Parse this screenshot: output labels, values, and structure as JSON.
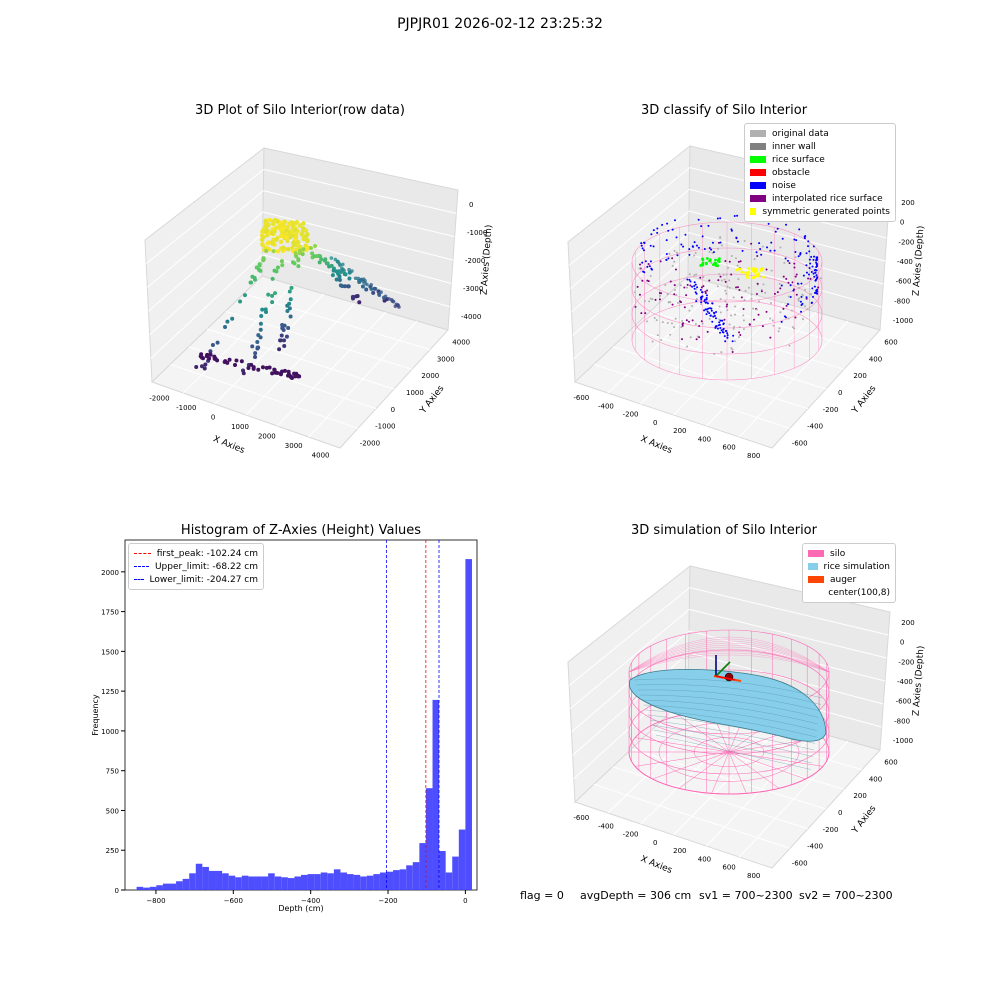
{
  "title": "PJPJR01 2026-02-12 23:25:32",
  "footer": {
    "flag": "flag = 0",
    "avg_depth": "avgDepth = 306 cm",
    "sv1": "sv1 = 700~2300",
    "sv2": "sv2 = 700~2300"
  },
  "colors": {
    "original_data": "#b0b0b0",
    "inner_wall": "#808080",
    "rice_surface": "#00ff00",
    "obstacle": "#ff0000",
    "noise": "#0000ff",
    "interpolated": "#800080",
    "symmetric": "#ffff00",
    "silo": "#ff69b4",
    "rice_simulation": "#87ceeb",
    "auger": "#ff4500",
    "hist_bar": "#4444ff"
  },
  "chart_data": [
    {
      "type": "scatter",
      "title": "3D Plot of Silo Interior(row data)",
      "xlabel": "X Axies",
      "ylabel": "Y Axies",
      "zlabel": "Z Axies (Depth)",
      "x_ticks": [
        "-2000",
        "-1000",
        "0",
        "1000",
        "2000",
        "3000",
        "4000"
      ],
      "y_ticks": [
        "-2000",
        "-1000",
        "0",
        "1000",
        "2000",
        "3000",
        "4000"
      ],
      "z_ticks": [
        "0",
        "-1000",
        "-2000",
        "-3000",
        "-4000"
      ]
    },
    {
      "type": "scatter",
      "title": "3D classify of Silo Interior",
      "xlabel": "X Axies",
      "ylabel": "Y Axies",
      "zlabel": "Z Axies (Depth)",
      "x_ticks": [
        "-600",
        "-400",
        "-200",
        "0",
        "200",
        "400",
        "600",
        "800"
      ],
      "y_ticks": [
        "-600",
        "-400",
        "-200",
        "0",
        "200",
        "400",
        "600"
      ],
      "z_ticks": [
        "200",
        "0",
        "-200",
        "-400",
        "-600",
        "-800",
        "-1000"
      ],
      "legend": [
        "original data",
        "inner wall",
        "rice surface",
        "obstacle",
        "noise",
        "interpolated rice surface",
        "symmetric generated points"
      ]
    },
    {
      "type": "bar",
      "title": "Histogram of Z-Axies (Height) Values",
      "xlabel": "Depth (cm)",
      "ylabel": "Frequency",
      "xlim": [
        -880,
        30
      ],
      "ylim": [
        0,
        2200
      ],
      "x_ticks": [
        -800,
        -600,
        -400,
        -200,
        0
      ],
      "y_ticks": [
        0,
        250,
        500,
        750,
        1000,
        1250,
        1500,
        1750,
        2000
      ],
      "bin_start": -850,
      "bin_width": 17,
      "values": [
        20,
        15,
        20,
        30,
        40,
        40,
        55,
        70,
        105,
        165,
        145,
        120,
        120,
        105,
        90,
        80,
        90,
        85,
        85,
        85,
        105,
        85,
        80,
        75,
        85,
        95,
        100,
        100,
        110,
        105,
        130,
        110,
        100,
        95,
        85,
        90,
        100,
        110,
        115,
        125,
        130,
        155,
        175,
        295,
        640,
        1195,
        245,
        110,
        210,
        380,
        2080
      ],
      "lines": [
        {
          "name": "first_peak: -102.24 cm",
          "x": -102.24,
          "color": "#ff0000"
        },
        {
          "name": "Upper_limit: -68.22 cm",
          "x": -68.22,
          "color": "#0000ff"
        },
        {
          "name": "Lower_limit: -204.27 cm",
          "x": -204.27,
          "color": "#0000ff"
        }
      ]
    },
    {
      "type": "area",
      "title": "3D simulation of Silo Interior",
      "xlabel": "X Axies",
      "ylabel": "Y Axies",
      "zlabel": "Z Axies (Depth)",
      "x_ticks": [
        "-600",
        "-400",
        "-200",
        "0",
        "200",
        "400",
        "600",
        "800"
      ],
      "y_ticks": [
        "-600",
        "-400",
        "-200",
        "0",
        "200",
        "400",
        "600"
      ],
      "z_ticks": [
        "200",
        "0",
        "-200",
        "-400",
        "-600",
        "-800",
        "-1000"
      ],
      "legend": [
        "silo",
        "rice simulation",
        "auger",
        "center(100,8)"
      ]
    }
  ]
}
